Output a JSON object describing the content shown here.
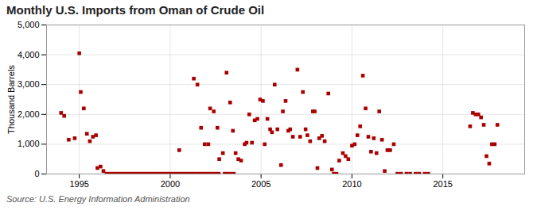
{
  "chart_data": {
    "type": "scatter",
    "title": "Monthly U.S. Imports from Oman of Crude Oil",
    "ylabel": "Thousand Barrels",
    "source": "Source: U.S. Energy Information Administration",
    "color": "#aa0000",
    "marker": "square",
    "grid": true,
    "xlim": [
      1993.2,
      2019.5
    ],
    "ylim": [
      0,
      5000
    ],
    "xticks": [
      1995,
      2000,
      2005,
      2010,
      2015
    ],
    "yticks": [
      0,
      {
        "value": 1000,
        "label": "1,000"
      },
      {
        "value": 2000,
        "label": "2,000"
      },
      {
        "value": 3000,
        "label": "3,000"
      },
      {
        "value": 4000,
        "label": "4,000"
      },
      {
        "value": 5000,
        "label": "5,000"
      }
    ],
    "x": [
      1994.0,
      1994.17,
      1994.42,
      1994.75,
      1995.0,
      1995.08,
      1995.25,
      1995.42,
      1995.58,
      1995.75,
      1995.92,
      1996.0,
      1996.17,
      1996.33,
      1996.5,
      1996.67,
      1996.83,
      1997.0,
      1997.17,
      1997.33,
      1997.5,
      1997.67,
      1997.83,
      1998.0,
      1998.17,
      1998.33,
      1998.5,
      1998.67,
      1998.83,
      1999.0,
      1999.17,
      1999.33,
      1999.5,
      1999.67,
      1999.83,
      2000.0,
      2000.17,
      2000.33,
      2000.5,
      2000.67,
      2000.83,
      2001.0,
      2001.17,
      2001.33,
      2001.5,
      2001.67,
      2001.83,
      2002.0,
      2002.17,
      2002.33,
      2002.5,
      2002.67,
      2003.0,
      2003.17,
      2003.33,
      2003.5,
      2000.5,
      2001.3,
      2001.5,
      2001.7,
      2001.9,
      2002.1,
      2002.2,
      2002.4,
      2002.6,
      2002.7,
      2002.9,
      2003.1,
      2003.3,
      2003.45,
      2003.6,
      2003.75,
      2003.9,
      2004.1,
      2004.2,
      2004.35,
      2004.5,
      2004.65,
      2004.8,
      2004.95,
      2005.1,
      2005.2,
      2005.35,
      2005.5,
      2005.6,
      2005.75,
      2005.9,
      2006.1,
      2006.2,
      2006.35,
      2006.5,
      2006.6,
      2006.75,
      2007.0,
      2007.15,
      2007.3,
      2007.45,
      2007.55,
      2007.7,
      2007.85,
      2007.95,
      2008.1,
      2008.2,
      2008.35,
      2008.5,
      2008.7,
      2008.9,
      2009.0,
      2009.15,
      2009.3,
      2009.5,
      2009.65,
      2009.8,
      2010.0,
      2010.15,
      2010.3,
      2010.45,
      2010.6,
      2010.75,
      2010.9,
      2011.05,
      2011.2,
      2011.35,
      2011.5,
      2011.65,
      2011.8,
      2011.95,
      2012.1,
      2012.3,
      2012.5,
      2012.7,
      2013.0,
      2013.2,
      2013.5,
      2013.7,
      2014.0,
      2014.2,
      2016.5,
      2016.65,
      2016.8,
      2016.95,
      2017.1,
      2017.25,
      2017.4,
      2017.55,
      2017.7,
      2017.85,
      2018.0
    ],
    "values": [
      2050,
      1950,
      1150,
      1200,
      4050,
      2750,
      2200,
      1350,
      1100,
      1250,
      1300,
      200,
      250,
      100,
      10,
      10,
      10,
      10,
      10,
      10,
      10,
      10,
      10,
      10,
      10,
      10,
      10,
      10,
      10,
      10,
      10,
      10,
      10,
      10,
      10,
      10,
      10,
      10,
      10,
      10,
      10,
      10,
      10,
      10,
      10,
      10,
      10,
      10,
      10,
      10,
      10,
      10,
      10,
      10,
      10,
      10,
      800,
      3200,
      3000,
      1550,
      1000,
      1000,
      2200,
      2100,
      1550,
      500,
      700,
      3400,
      2400,
      1450,
      700,
      500,
      450,
      1000,
      1050,
      2000,
      1050,
      1800,
      1850,
      2500,
      2450,
      1000,
      1850,
      1500,
      1400,
      3000,
      1500,
      300,
      2100,
      2450,
      1450,
      1500,
      1250,
      3500,
      1250,
      2750,
      1500,
      1300,
      1100,
      2100,
      2100,
      200,
      1200,
      1280,
      1100,
      2700,
      150,
      10,
      10,
      450,
      700,
      600,
      500,
      950,
      1000,
      1300,
      1600,
      3300,
      2200,
      1250,
      750,
      1200,
      700,
      2100,
      1150,
      100,
      800,
      800,
      1000,
      10,
      10,
      10,
      10,
      10,
      10,
      10,
      10,
      1600,
      2050,
      2000,
      2000,
      1900,
      1650,
      600,
      350,
      1000,
      1000,
      1650
    ]
  }
}
